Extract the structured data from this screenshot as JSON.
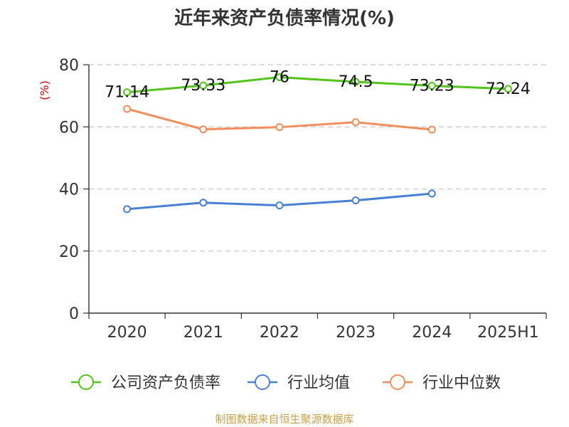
{
  "chart_data": {
    "type": "line",
    "title": "近年来资产负债率情况(%)",
    "ylabel": "(%)",
    "xlabel": "",
    "categories": [
      "2020",
      "2021",
      "2022",
      "2023",
      "2024",
      "2025H1"
    ],
    "ylim": [
      0,
      80
    ],
    "yticks": [
      0,
      20,
      40,
      60,
      80
    ],
    "grid": true,
    "legend_position": "bottom",
    "series": [
      {
        "name": "公司资产负债率",
        "color": "#52c41a",
        "values": [
          71.14,
          73.33,
          76,
          74.5,
          73.23,
          72.24
        ],
        "labels": [
          "71.14",
          "73.33",
          "76",
          "74.5",
          "73.23",
          "72.24"
        ]
      },
      {
        "name": "行业均值",
        "color": "#4a7fd6",
        "values": [
          33.5,
          35.6,
          34.7,
          36.3,
          38.5,
          null
        ]
      },
      {
        "name": "行业中位数",
        "color": "#f28e5c",
        "values": [
          65.8,
          59.2,
          59.9,
          61.5,
          59.1,
          null
        ]
      }
    ]
  },
  "source": "制图数据来自恒生聚源数据库"
}
